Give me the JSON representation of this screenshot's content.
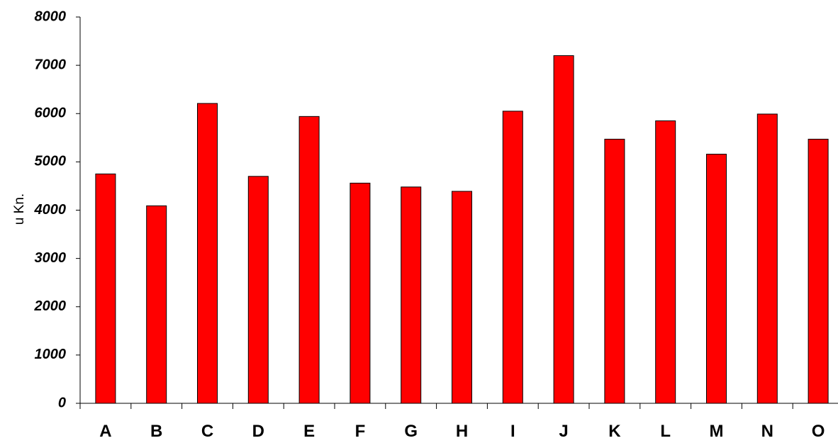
{
  "chart_data": {
    "type": "bar",
    "title": "",
    "xlabel": "",
    "ylabel": "u Kn.",
    "categories": [
      "A",
      "B",
      "C",
      "D",
      "E",
      "F",
      "G",
      "H",
      "I",
      "J",
      "K",
      "L",
      "M",
      "N",
      "O"
    ],
    "values": [
      4750,
      4090,
      6210,
      4700,
      5940,
      4560,
      4480,
      4390,
      6050,
      7200,
      5470,
      5850,
      5160,
      5990,
      5470
    ],
    "ylim": [
      0,
      8000
    ],
    "yticks": [
      "0",
      "1000",
      "2000",
      "3000",
      "4000",
      "5000",
      "6000",
      "7000",
      "8000"
    ],
    "grid": false,
    "legend": "none",
    "colors": {
      "bar_fill": "#ff0000",
      "bar_stroke": "#000000",
      "axis": "#000000"
    }
  }
}
